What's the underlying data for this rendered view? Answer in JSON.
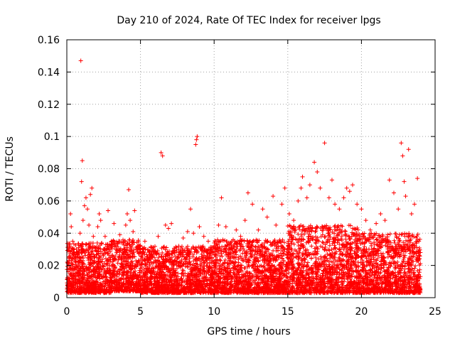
{
  "chart_data": {
    "type": "scatter",
    "title": "Day 210 of 2024, Rate Of TEC Index for receiver lpgs",
    "xlabel": "GPS time / hours",
    "ylabel": "ROTI / TECUs",
    "xlim": [
      0,
      25
    ],
    "ylim": [
      0,
      0.16
    ],
    "xticks": [
      0,
      5,
      10,
      15,
      20,
      25
    ],
    "xtick_labels": [
      "0",
      "5",
      "10",
      "15",
      "20",
      "25"
    ],
    "yticks": [
      0,
      0.02,
      0.04,
      0.06,
      0.08,
      0.1,
      0.12,
      0.14,
      0.16
    ],
    "ytick_labels": [
      "0",
      "0.02",
      "0.04",
      "0.06",
      "0.08",
      "0.1",
      "0.12",
      "0.14",
      "0.16"
    ],
    "grid": true,
    "marker": "+",
    "color": "#ff0000",
    "series": [
      {
        "name": "ROTI",
        "points": [
          [
            0.05,
            0.008
          ],
          [
            0.12,
            0.012
          ],
          [
            0.2,
            0.018
          ],
          [
            0.25,
            0.052
          ],
          [
            0.3,
            0.044
          ],
          [
            0.4,
            0.035
          ],
          [
            0.5,
            0.028
          ],
          [
            0.6,
            0.022
          ],
          [
            0.7,
            0.015
          ],
          [
            0.8,
            0.031
          ],
          [
            0.9,
            0.04
          ],
          [
            0.95,
            0.147
          ],
          [
            1.0,
            0.072
          ],
          [
            1.05,
            0.085
          ],
          [
            1.1,
            0.048
          ],
          [
            1.2,
            0.057
          ],
          [
            1.3,
            0.062
          ],
          [
            1.4,
            0.055
          ],
          [
            1.5,
            0.045
          ],
          [
            1.6,
            0.064
          ],
          [
            1.7,
            0.068
          ],
          [
            1.8,
            0.038
          ],
          [
            1.9,
            0.025
          ],
          [
            2.1,
            0.044
          ],
          [
            2.2,
            0.052
          ],
          [
            2.3,
            0.048
          ],
          [
            2.5,
            0.03
          ],
          [
            2.6,
            0.038
          ],
          [
            2.8,
            0.054
          ],
          [
            3.0,
            0.031
          ],
          [
            3.2,
            0.046
          ],
          [
            3.4,
            0.028
          ],
          [
            3.6,
            0.039
          ],
          [
            3.8,
            0.034
          ],
          [
            4.0,
            0.045
          ],
          [
            4.1,
            0.052
          ],
          [
            4.2,
            0.067
          ],
          [
            4.3,
            0.048
          ],
          [
            4.5,
            0.041
          ],
          [
            4.6,
            0.054
          ],
          [
            4.8,
            0.022
          ],
          [
            5.0,
            0.028
          ],
          [
            5.3,
            0.035
          ],
          [
            5.6,
            0.025
          ],
          [
            5.9,
            0.03
          ],
          [
            6.2,
            0.038
          ],
          [
            6.4,
            0.09
          ],
          [
            6.5,
            0.088
          ],
          [
            6.7,
            0.045
          ],
          [
            6.9,
            0.043
          ],
          [
            7.1,
            0.046
          ],
          [
            7.3,
            0.028
          ],
          [
            7.6,
            0.032
          ],
          [
            7.9,
            0.037
          ],
          [
            8.2,
            0.041
          ],
          [
            8.4,
            0.055
          ],
          [
            8.6,
            0.04
          ],
          [
            8.75,
            0.095
          ],
          [
            8.8,
            0.098
          ],
          [
            8.85,
            0.1
          ],
          [
            9.0,
            0.044
          ],
          [
            9.3,
            0.038
          ],
          [
            9.6,
            0.035
          ],
          [
            10.0,
            0.032
          ],
          [
            10.3,
            0.045
          ],
          [
            10.5,
            0.062
          ],
          [
            10.8,
            0.044
          ],
          [
            11.2,
            0.035
          ],
          [
            11.5,
            0.042
          ],
          [
            11.8,
            0.038
          ],
          [
            12.1,
            0.048
          ],
          [
            12.3,
            0.065
          ],
          [
            12.6,
            0.058
          ],
          [
            13.0,
            0.042
          ],
          [
            13.3,
            0.055
          ],
          [
            13.6,
            0.05
          ],
          [
            14.0,
            0.063
          ],
          [
            14.2,
            0.045
          ],
          [
            14.6,
            0.058
          ],
          [
            14.8,
            0.068
          ],
          [
            15.1,
            0.052
          ],
          [
            15.4,
            0.048
          ],
          [
            15.7,
            0.06
          ],
          [
            15.9,
            0.068
          ],
          [
            16.0,
            0.075
          ],
          [
            16.3,
            0.062
          ],
          [
            16.5,
            0.07
          ],
          [
            16.8,
            0.084
          ],
          [
            17.0,
            0.078
          ],
          [
            17.2,
            0.068
          ],
          [
            17.5,
            0.096
          ],
          [
            17.8,
            0.062
          ],
          [
            18.0,
            0.073
          ],
          [
            18.2,
            0.058
          ],
          [
            18.5,
            0.055
          ],
          [
            18.8,
            0.062
          ],
          [
            19.0,
            0.068
          ],
          [
            19.2,
            0.066
          ],
          [
            19.4,
            0.07
          ],
          [
            19.7,
            0.058
          ],
          [
            20.0,
            0.055
          ],
          [
            20.3,
            0.048
          ],
          [
            20.6,
            0.042
          ],
          [
            21.0,
            0.046
          ],
          [
            21.3,
            0.052
          ],
          [
            21.6,
            0.048
          ],
          [
            21.9,
            0.073
          ],
          [
            22.2,
            0.065
          ],
          [
            22.5,
            0.055
          ],
          [
            22.7,
            0.096
          ],
          [
            22.8,
            0.088
          ],
          [
            22.9,
            0.072
          ],
          [
            23.0,
            0.063
          ],
          [
            23.2,
            0.092
          ],
          [
            23.4,
            0.052
          ],
          [
            23.6,
            0.058
          ],
          [
            23.8,
            0.074
          ],
          [
            23.9,
            0.035
          ],
          [
            24.0,
            0.028
          ]
        ],
        "dense_band": [
          {
            "x_start": 0,
            "x_end": 3,
            "low": 0.003,
            "high": 0.034
          },
          {
            "x_start": 3,
            "x_end": 5,
            "low": 0.004,
            "high": 0.036
          },
          {
            "x_start": 5,
            "x_end": 10,
            "low": 0.003,
            "high": 0.032
          },
          {
            "x_start": 10,
            "x_end": 15,
            "low": 0.003,
            "high": 0.036
          },
          {
            "x_start": 15,
            "x_end": 20,
            "low": 0.003,
            "high": 0.045
          },
          {
            "x_start": 20,
            "x_end": 24,
            "low": 0.003,
            "high": 0.04
          }
        ]
      }
    ]
  }
}
